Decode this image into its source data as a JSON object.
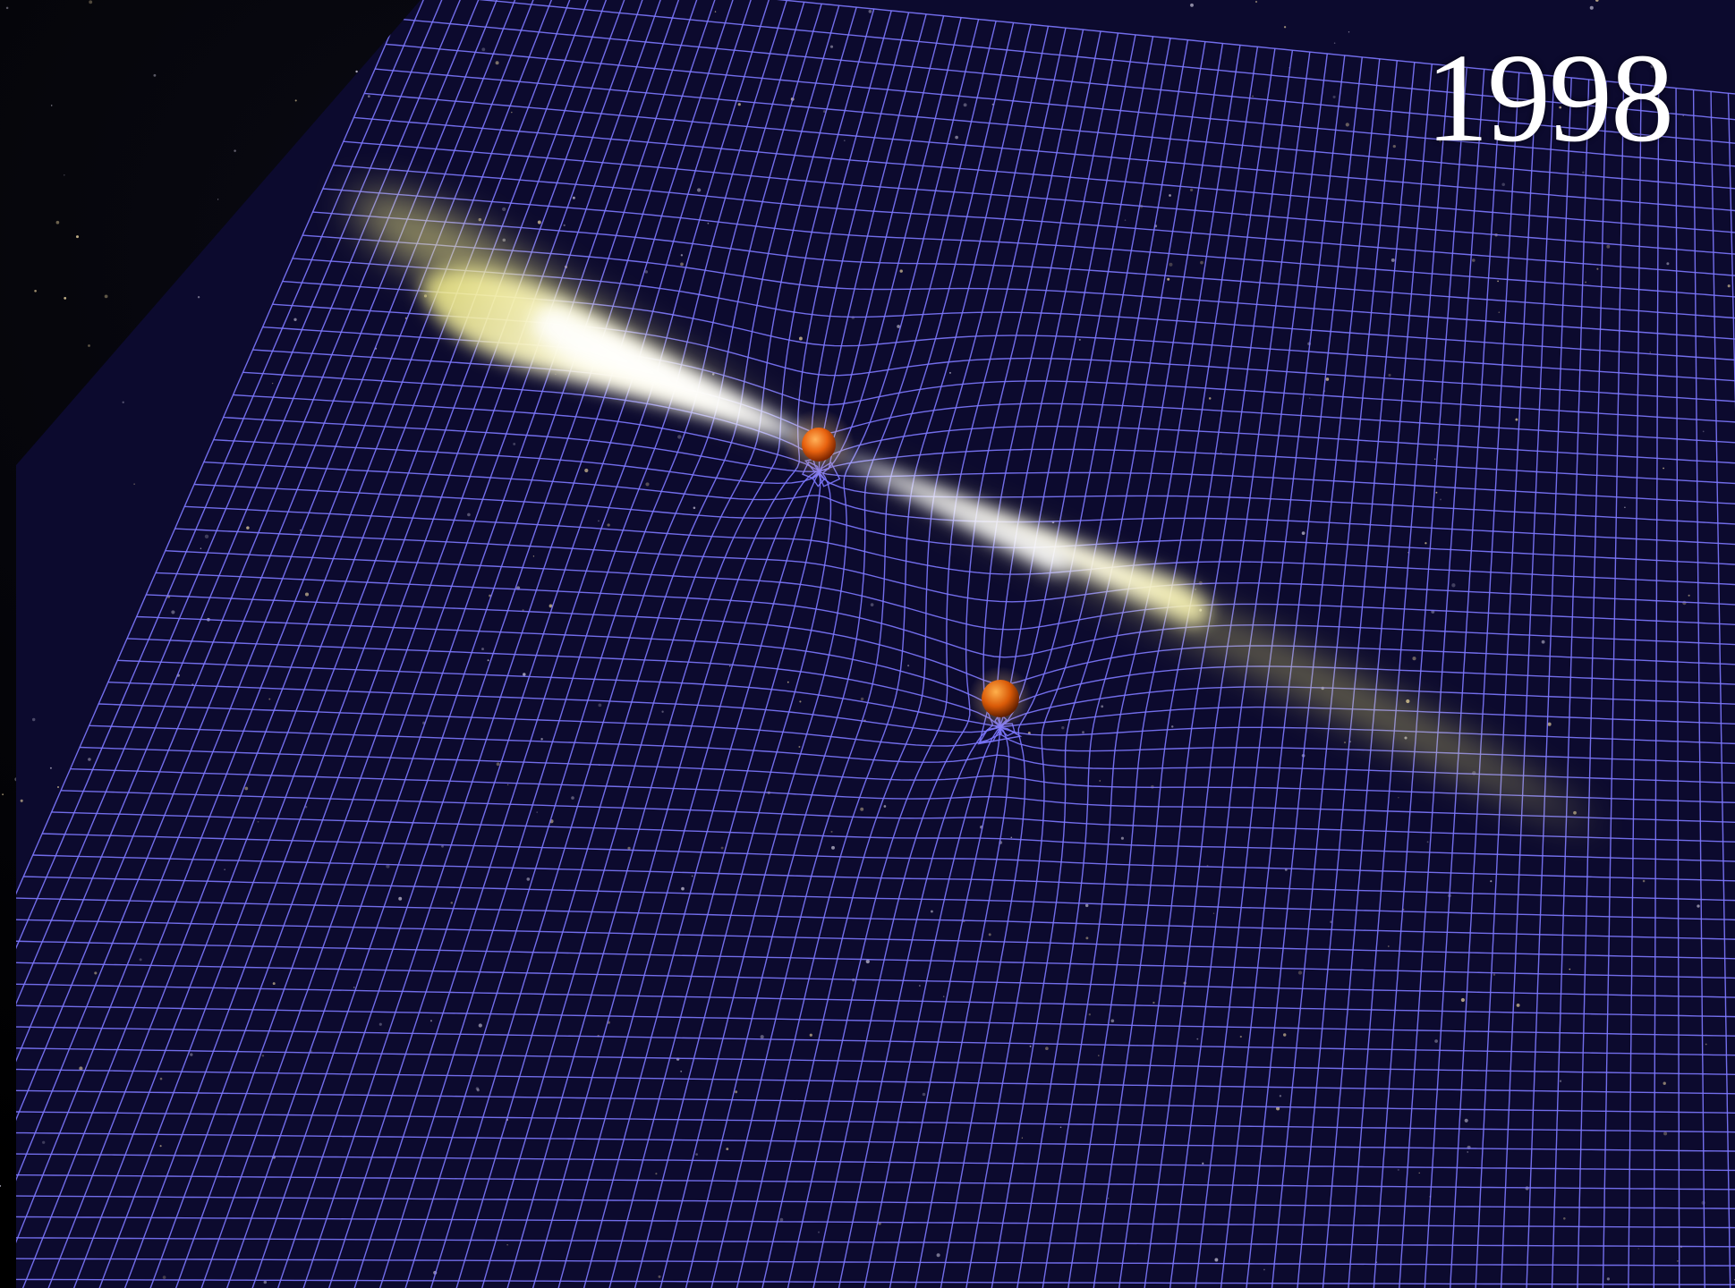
{
  "year_label": "1998",
  "colors": {
    "space": "#000000",
    "grid_line": "#7d78ff",
    "grid_fill": "#0c0a2e",
    "jet": "#fff6a8",
    "star_body": "#e8620f"
  },
  "objects": {
    "pulsar": "pulsar-star",
    "companion": "companion-star",
    "jets": "pulsar-jet",
    "spacetime": "spacetime-grid"
  }
}
